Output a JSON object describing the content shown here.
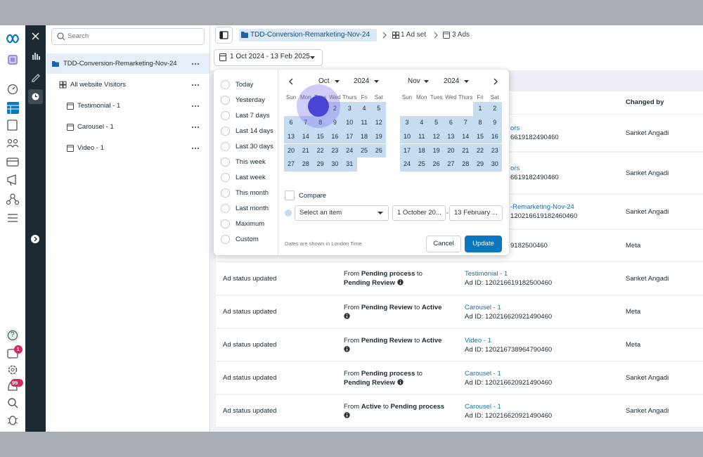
{
  "left_rail": {
    "help": "?",
    "notification_badges": [
      "1",
      "99"
    ]
  },
  "sidebar": {
    "search_placeholder": "Search",
    "campaign": {
      "name": "TDD-Conversion-Remarketing-Nov-24",
      "ad_set": {
        "name": "All website Visitors",
        "ads": [
          "Testimonial - 1",
          "Carousel - 1",
          "Video - 1"
        ]
      }
    }
  },
  "toolbar": {
    "breadcrumb": {
      "campaign": "TDD-Conversion-Remarketing-Nov-24",
      "ad_sets": "1 Ad set",
      "ads": "3 Ads"
    },
    "date_range": "1 Oct 2024 - 13 Feb 2025"
  },
  "date_picker": {
    "presets": [
      "Today",
      "Yesterday",
      "Last 7 days",
      "Last 14 days",
      "Last 30 days",
      "This week",
      "Last week",
      "This month",
      "Last month",
      "Maximum",
      "Custom"
    ],
    "months": [
      {
        "month": "Oct",
        "year": "2024",
        "weekdays": [
          "Sun",
          "Mon",
          "Tues",
          "Wed",
          "Thurs",
          "Fri",
          "Sat"
        ],
        "weeks": [
          [
            null,
            null,
            1,
            2,
            3,
            4,
            5
          ],
          [
            6,
            7,
            8,
            9,
            10,
            11,
            12
          ],
          [
            13,
            14,
            15,
            16,
            17,
            18,
            19
          ],
          [
            20,
            21,
            22,
            23,
            24,
            25,
            26
          ],
          [
            27,
            28,
            29,
            30,
            31
          ]
        ]
      },
      {
        "month": "Nov",
        "year": "2024",
        "weekdays": [
          "Sun",
          "Mon",
          "Tues",
          "Wed",
          "Thurs",
          "Fri",
          "Sat"
        ],
        "weeks": [
          [
            null,
            null,
            null,
            null,
            null,
            1,
            2
          ],
          [
            3,
            4,
            5,
            6,
            7,
            8,
            9
          ],
          [
            10,
            11,
            12,
            13,
            14,
            15,
            16
          ],
          [
            17,
            18,
            19,
            20,
            21,
            22,
            23
          ],
          [
            24,
            25,
            26,
            27,
            28,
            29,
            30
          ]
        ]
      }
    ],
    "compare": "Compare",
    "compare_select": "Select an item",
    "start_date": "1 October 20...",
    "end_date": "13 February ...",
    "timezone_note": "Dates are shown in London Time",
    "cancel": "Cancel",
    "update": "Update"
  },
  "activity_table": {
    "columns": {
      "changed_by": "Changed by"
    },
    "rows": [
      {
        "item": "ors",
        "item_id": "6619182490460",
        "changed_by": "Sanket Angadi"
      },
      {
        "item": "ors",
        "item_id": "6619182490460",
        "changed_by": "Sanket Angadi"
      },
      {
        "item": "-Remarketing-Nov-24",
        "item_id": "120216619182460460",
        "changed_by": "Sanket Angadi"
      },
      {
        "item_id": "9182500460",
        "changed_by": "Meta"
      },
      {
        "activity": "Ad status updated",
        "details": [
          "From",
          "Pending process",
          "to",
          "Pending Review"
        ],
        "item": "Testimonial - 1",
        "item_id": "Ad ID: 120216619182500460",
        "changed_by": "Sanket Angadi"
      },
      {
        "activity": "Ad status updated",
        "details": [
          "From",
          "Pending Review",
          "to",
          "Active"
        ],
        "item": "Carousel - 1",
        "item_id": "Ad ID: 120216620921490460",
        "changed_by": "Meta"
      },
      {
        "activity": "Ad status updated",
        "details": [
          "From",
          "Pending Review",
          "to",
          "Active"
        ],
        "item": "Video - 1",
        "item_id": "Ad ID: 120216738964790460",
        "changed_by": "Meta"
      },
      {
        "activity": "Ad status updated",
        "details": [
          "From",
          "Pending process",
          "to",
          "Pending Review"
        ],
        "item": "Carousel - 1",
        "item_id": "Ad ID: 120216620921490460",
        "changed_by": "Sanket Angadi"
      },
      {
        "activity": "Ad status updated",
        "details": [
          "From",
          "Active",
          "to",
          "Pending process"
        ],
        "item": "Carousel - 1",
        "item_id": "Ad ID: 120216620921490460",
        "changed_by": "Sanket Angadi"
      }
    ]
  }
}
